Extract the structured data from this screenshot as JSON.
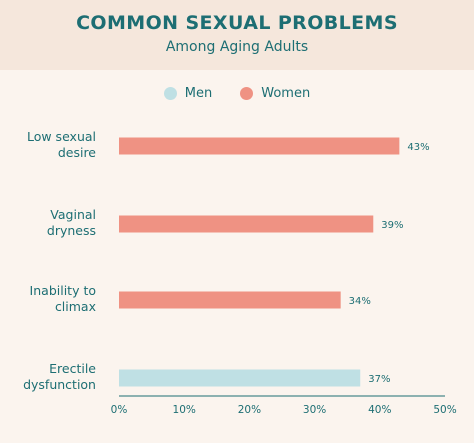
{
  "header": {
    "title": "COMMON SEXUAL PROBLEMS",
    "subtitle": "Among Aging Adults"
  },
  "legend": [
    {
      "name": "Men",
      "color": "#bfe0e4"
    },
    {
      "name": "Women",
      "color": "#ef9283"
    }
  ],
  "chart_data": {
    "type": "bar",
    "orientation": "horizontal",
    "title": "COMMON SEXUAL PROBLEMS",
    "subtitle": "Among Aging Adults",
    "categories": [
      [
        "Low sexual",
        "desire"
      ],
      [
        "Vaginal",
        "dryness"
      ],
      [
        "Inability to",
        "climax"
      ],
      [
        "Erectile",
        "dysfunction"
      ]
    ],
    "values": [
      43,
      39,
      34,
      37
    ],
    "group": [
      "Women",
      "Women",
      "Women",
      "Men"
    ],
    "value_labels": [
      "43%",
      "39%",
      "34%",
      "37%"
    ],
    "xlim": [
      0,
      50
    ],
    "xticks": [
      "0%",
      "10%",
      "20%",
      "30%",
      "40%",
      "50%"
    ],
    "colors": {
      "Men": "#bfe0e4",
      "Women": "#ef9283"
    },
    "grid": false,
    "legend_position": "top"
  }
}
